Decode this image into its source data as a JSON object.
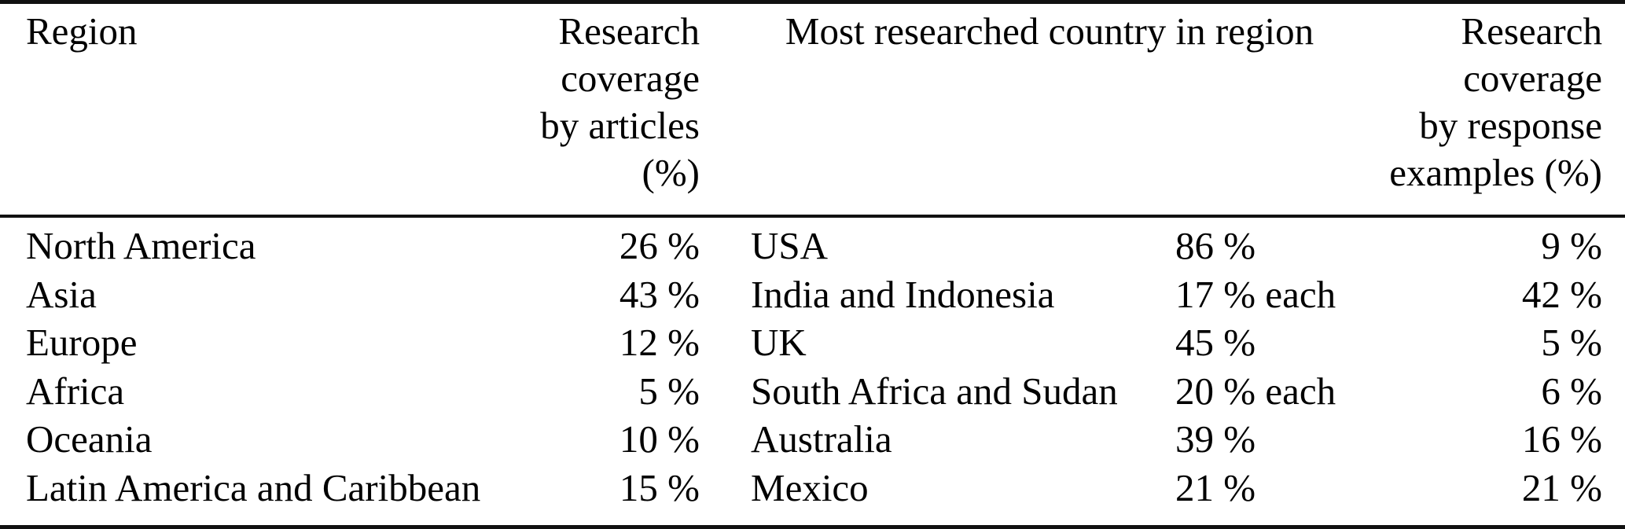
{
  "table": {
    "background": "#ffffff",
    "text_color": "#000000",
    "rule_color": "#111111",
    "columns": {
      "region": "Region",
      "articles": {
        "lines": [
          "Research",
          "coverage",
          "by articles",
          "(%)"
        ]
      },
      "country": "Most researched country in region",
      "examples": {
        "lines": [
          "Research",
          "coverage",
          "by response",
          "examples (%)"
        ]
      }
    },
    "rows": [
      {
        "region": "North America",
        "articles_pct": "26 %",
        "country": "USA",
        "country_pct": "86 %",
        "examples_pct": "9 %"
      },
      {
        "region": "Asia",
        "articles_pct": "43 %",
        "country": "India and Indonesia",
        "country_pct": "17 % each",
        "examples_pct": "42 %"
      },
      {
        "region": "Europe",
        "articles_pct": "12 %",
        "country": "UK",
        "country_pct": "45 %",
        "examples_pct": "5 %"
      },
      {
        "region": "Africa",
        "articles_pct": "5 %",
        "country": "South Africa and Sudan",
        "country_pct": "20 % each",
        "examples_pct": "6 %"
      },
      {
        "region": "Oceania",
        "articles_pct": "10 %",
        "country": "Australia",
        "country_pct": "39 %",
        "examples_pct": "16 %"
      },
      {
        "region": "Latin America and Caribbean",
        "articles_pct": "15 %",
        "country": "Mexico",
        "country_pct": "21 %",
        "examples_pct": "21 %"
      }
    ]
  }
}
